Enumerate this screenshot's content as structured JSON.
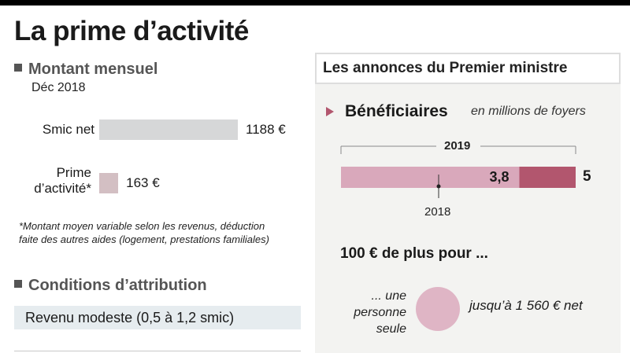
{
  "title": "La prime d’activité",
  "left": {
    "montant_heading": "Montant mensuel",
    "date": "Déc 2018",
    "footnote": "*Montant moyen variable selon les revenus, déduction faite des autres aides (logement, prestations familiales)",
    "conditions_heading": "Conditions d’attribution",
    "conditions_text": "Revenu modeste (0,5 à 1,2 smic)"
  },
  "right": {
    "panel_title": "Les annonces du Premier ministre",
    "beneficiaires_label": "Bénéficiaires",
    "beneficiaires_unit": "en millions de foyers",
    "plus_heading": "100 € de plus pour ...",
    "personne_line1": "... une",
    "personne_line2": "personne",
    "personne_line3": "seule",
    "jusqua": "jusqu’à 1 560 € net"
  },
  "colors": {
    "smic_bar": "#d6d7d8",
    "prime_bar": "#d3bfc3",
    "benef_2018": "#d9a8bb",
    "benef_added": "#b2566e",
    "accent": "#b2566e"
  },
  "chart_data": [
    {
      "type": "bar",
      "orientation": "horizontal",
      "title": "Montant mensuel",
      "subtitle": "Déc 2018",
      "categories_line1": [
        "Smic net",
        "Prime"
      ],
      "categories_line2": [
        "",
        "d’activité*"
      ],
      "values": [
        1188,
        163
      ],
      "value_labels": [
        "1188 €",
        "163 €"
      ],
      "unit": "€"
    },
    {
      "type": "bar",
      "orientation": "horizontal",
      "stacked": true,
      "title": "Bénéficiaires",
      "unit": "en millions de foyers",
      "series": [
        {
          "name": "2018",
          "value": 3.8,
          "label": "3,8"
        },
        {
          "name": "2019",
          "value": 5,
          "label": "5"
        }
      ],
      "xlim": [
        0,
        5
      ]
    }
  ]
}
